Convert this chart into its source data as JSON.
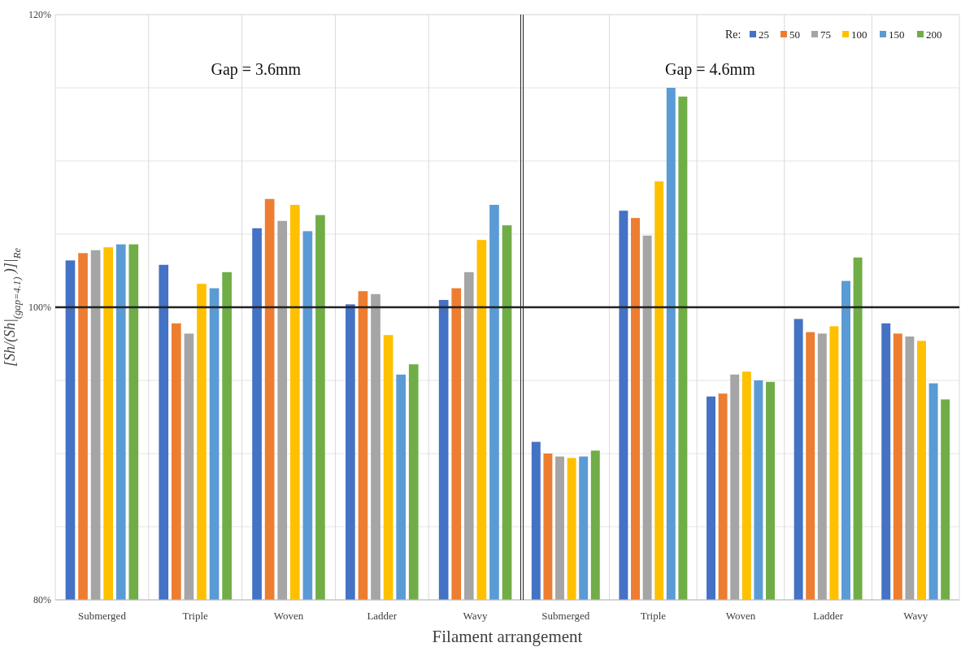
{
  "chart_data": [
    {
      "type": "bar",
      "title": "Gap = 3.6mm",
      "xlabel": "Filament arrangement",
      "ylabel": "[Sh/(Sh|$_{(gap=4.1)}$ )]|$_{Re}$",
      "categories": [
        "Submerged",
        "Triple",
        "Woven",
        "Ladder",
        "Wavy"
      ],
      "series": [
        {
          "color": "#4472c4",
          "values": [
            103.2,
            102.9,
            105.4,
            100.2,
            100.5
          ]
        },
        {
          "color": "#ed7d31",
          "values": [
            103.7,
            98.9,
            107.4,
            101.1,
            101.3
          ]
        },
        {
          "color": "#a5a5a5",
          "values": [
            103.9,
            98.2,
            105.9,
            100.9,
            102.4
          ]
        },
        {
          "color": "#ffc000",
          "values": [
            104.1,
            101.6,
            107.0,
            98.1,
            104.6
          ]
        },
        {
          "color": "#5b9bd5",
          "values": [
            104.3,
            101.3,
            105.2,
            95.4,
            107.0
          ]
        },
        {
          "color": "#70ad47",
          "values": [
            104.3,
            102.4,
            106.3,
            96.1,
            105.6
          ]
        }
      ],
      "ylim": [
        80,
        120
      ],
      "yticks": [
        {
          "value": 80,
          "label": "80%"
        },
        {
          "value": 85,
          "label": null
        },
        {
          "value": 90,
          "label": null
        },
        {
          "value": 95,
          "label": null
        },
        {
          "value": 100,
          "label": "100%"
        },
        {
          "value": 105,
          "label": null
        },
        {
          "value": 110,
          "label": null
        },
        {
          "value": 115,
          "label": null
        },
        {
          "value": 120,
          "label": "120%"
        }
      ],
      "grid": true,
      "ref_lines": [
        {
          "axis": "y",
          "value": 100
        }
      ]
    },
    {
      "type": "bar",
      "title": "Gap = 4.6mm",
      "legend_title": "Re:",
      "legend": "top right",
      "tick_labels": "x",
      "categories": [
        "Submerged",
        "Triple",
        "Woven",
        "Ladder",
        "Wavy"
      ],
      "series": [
        {
          "name": "25",
          "color": "#4472c4",
          "values": [
            90.8,
            106.6,
            93.9,
            99.2,
            98.9
          ]
        },
        {
          "name": "50",
          "color": "#ed7d31",
          "values": [
            90.0,
            106.1,
            94.1,
            98.3,
            98.2
          ]
        },
        {
          "name": "75",
          "color": "#a5a5a5",
          "values": [
            89.8,
            104.9,
            95.4,
            98.2,
            98.0
          ]
        },
        {
          "name": "100",
          "color": "#ffc000",
          "values": [
            89.7,
            108.6,
            95.6,
            98.7,
            97.7
          ]
        },
        {
          "name": "150",
          "color": "#5b9bd5",
          "values": [
            89.8,
            115.0,
            95.0,
            101.8,
            94.8
          ]
        },
        {
          "name": "200",
          "color": "#70ad47",
          "values": [
            90.2,
            114.4,
            94.9,
            103.4,
            93.7
          ]
        }
      ],
      "ylim": [
        80,
        120
      ],
      "yticks": [
        {
          "value": 80,
          "label": null
        },
        {
          "value": 85,
          "label": null
        },
        {
          "value": 90,
          "label": null
        },
        {
          "value": 95,
          "label": null
        },
        {
          "value": 100,
          "label": null
        },
        {
          "value": 105,
          "label": null
        },
        {
          "value": 110,
          "label": null
        },
        {
          "value": 115,
          "label": null
        },
        {
          "value": 120,
          "label": null
        }
      ],
      "grid": true,
      "ref_lines": [
        {
          "axis": "y",
          "value": 100
        }
      ]
    }
  ]
}
